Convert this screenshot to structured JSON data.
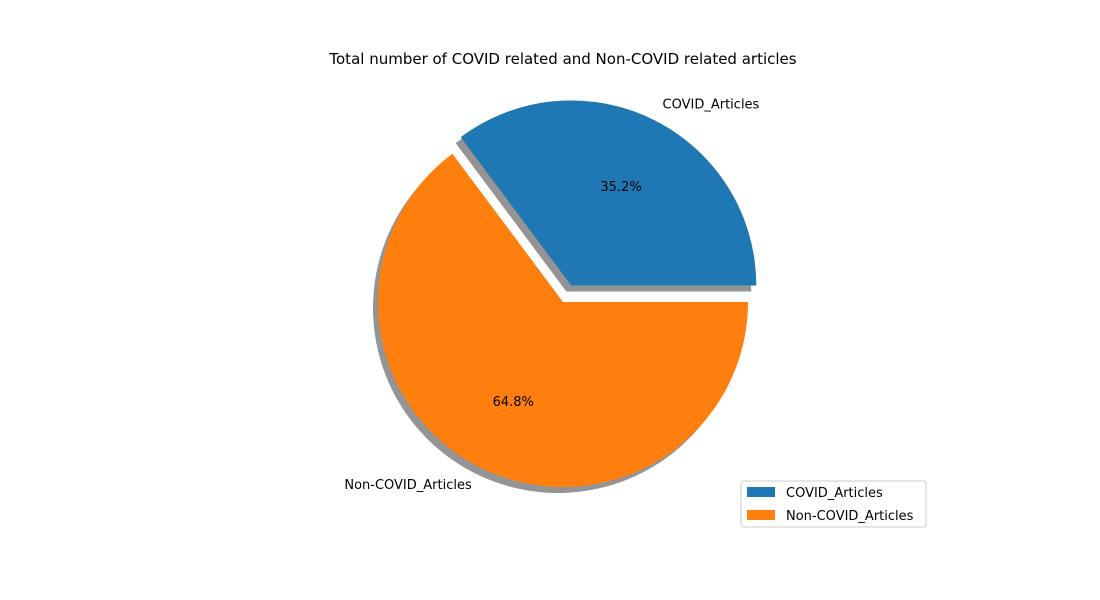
{
  "chart_data": {
    "type": "pie",
    "title": "Total number of COVID related and Non-COVID related articles",
    "categories": [
      "COVID_Articles",
      "Non-COVID_Articles"
    ],
    "values": [
      35.2,
      64.8
    ],
    "percent_labels": [
      "35.2%",
      "64.8%"
    ],
    "colors": [
      "#1f77b4",
      "#ff7f0e"
    ],
    "explode": [
      0.1,
      0
    ],
    "shadow": true,
    "start_angle_deg": 0,
    "direction": "counterclockwise",
    "legend": {
      "placement": "bottom-right",
      "entries": [
        "COVID_Articles",
        "Non-COVID_Articles"
      ]
    }
  }
}
